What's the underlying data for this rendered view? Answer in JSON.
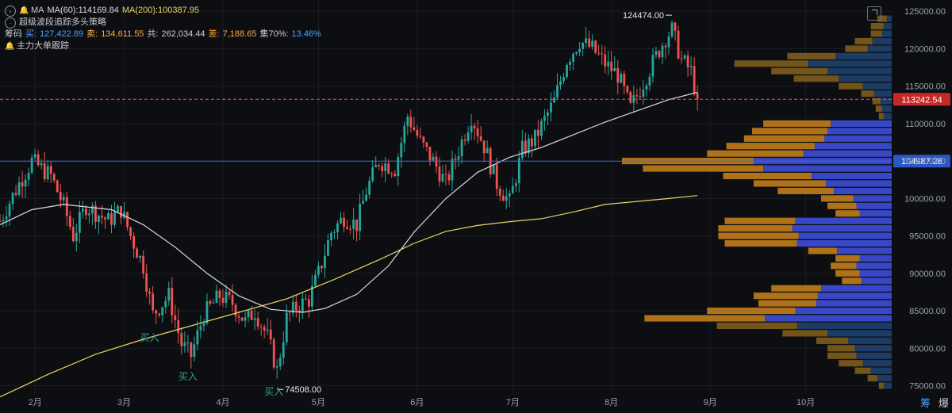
{
  "legend": {
    "indicator_name": "MA",
    "ma60_label": "MA(60):114169.84",
    "ma200_label": "MA(200):100387.95",
    "strategy": "超级波段追踪多头策略",
    "chips_label": "筹码",
    "buy_label": "买:",
    "buy_value": "127,422.89",
    "sell_label": "卖:",
    "sell_value": "134,611.55",
    "total_label": "共:",
    "total_value": "262,034.44",
    "diff_label": "差:",
    "diff_value": "7,188.65",
    "conc_label": "集70%:",
    "conc_value": "13.46%",
    "tracking": "主力大单跟踪"
  },
  "tabs": {
    "chips": "筹",
    "burst": "爆"
  },
  "colors": {
    "background": "#0d0e12",
    "up": "#26a69a",
    "down": "#ef5350",
    "ma60": "#d9dbe0",
    "ma200": "#e8d36a",
    "profile_blue": "#3b4bd1",
    "profile_orange": "#b8781a",
    "profile_navy": "#1f3f6a",
    "profile_brown": "#7a5a1a",
    "price_line": "#ef5350",
    "level_line": "#3a6fd8",
    "buy_signal": "#26a69a"
  },
  "chart_data": {
    "type": "candlestick",
    "y_axis": {
      "ylim": [
        74000,
        126500
      ],
      "ticks": [
        "125000.00",
        "120000.00",
        "115000.00",
        "110000.00",
        "105000.00",
        "100000.00",
        "95000.00",
        "90000.00",
        "85000.00",
        "80000.00",
        "75000.00"
      ]
    },
    "x_axis": {
      "months": [
        "2月",
        "3月",
        "4月",
        "5月",
        "6月",
        "7月",
        "8月",
        "9月",
        "10月"
      ],
      "month_day_index": [
        11,
        39,
        70,
        100,
        131,
        161,
        192,
        223,
        253
      ],
      "total_days_shown": 280
    },
    "price_tags": [
      {
        "label": "113242.54",
        "value": 113242.54,
        "style": "current"
      },
      {
        "label": "104987.26",
        "value": 104987.26,
        "style": "level"
      }
    ],
    "annotations": [
      {
        "text": "124474.00",
        "day": 211,
        "value": 124474,
        "arrow": "right"
      },
      {
        "text": "74508.00",
        "day": 87,
        "value": 74508,
        "arrow": "left"
      }
    ],
    "buy_signals": [
      {
        "text": "买入",
        "day": 47,
        "value": 81000
      },
      {
        "text": "买入",
        "day": 59,
        "value": 75800
      },
      {
        "text": "买入",
        "day": 86,
        "value": 73800
      }
    ],
    "ohlc_path": [
      [
        0,
        97000
      ],
      [
        6,
        102000
      ],
      [
        10,
        105000
      ],
      [
        16,
        103000
      ],
      [
        20,
        99000
      ],
      [
        23,
        95000
      ],
      [
        27,
        99000
      ],
      [
        34,
        97000
      ],
      [
        38,
        98500
      ],
      [
        41,
        95000
      ],
      [
        45,
        91000
      ],
      [
        48,
        84500
      ],
      [
        53,
        87000
      ],
      [
        57,
        80500
      ],
      [
        60,
        79000
      ],
      [
        64,
        84500
      ],
      [
        69,
        87000
      ],
      [
        73,
        86000
      ],
      [
        77,
        83500
      ],
      [
        80,
        85000
      ],
      [
        84,
        81500
      ],
      [
        87,
        77000
      ],
      [
        90,
        84000
      ],
      [
        93,
        85500
      ],
      [
        97,
        86500
      ],
      [
        100,
        90000
      ],
      [
        104,
        95500
      ],
      [
        108,
        97500
      ],
      [
        112,
        96500
      ],
      [
        115,
        101000
      ],
      [
        119,
        105000
      ],
      [
        124,
        104000
      ],
      [
        128,
        111000
      ],
      [
        132,
        107500
      ],
      [
        136,
        105000
      ],
      [
        140,
        102000
      ],
      [
        144,
        106500
      ],
      [
        148,
        111000
      ],
      [
        152,
        107000
      ],
      [
        156,
        102000
      ],
      [
        160,
        99500
      ],
      [
        164,
        106500
      ],
      [
        168,
        108000
      ],
      [
        171,
        110500
      ],
      [
        174,
        113000
      ],
      [
        178,
        118500
      ],
      [
        182,
        121000
      ],
      [
        186,
        120000
      ],
      [
        190,
        118000
      ],
      [
        194,
        116500
      ],
      [
        198,
        112000
      ],
      [
        202,
        115500
      ],
      [
        206,
        119000
      ],
      [
        209,
        121500
      ],
      [
        211,
        122500
      ],
      [
        214,
        118500
      ],
      [
        217,
        117000
      ],
      [
        219,
        113242.54
      ]
    ],
    "ma60_points": [
      [
        0,
        96500
      ],
      [
        10,
        98500
      ],
      [
        20,
        99200
      ],
      [
        35,
        98500
      ],
      [
        45,
        96500
      ],
      [
        55,
        93500
      ],
      [
        65,
        90000
      ],
      [
        75,
        87000
      ],
      [
        85,
        85200
      ],
      [
        95,
        84800
      ],
      [
        102,
        85300
      ],
      [
        112,
        87200
      ],
      [
        122,
        91000
      ],
      [
        130,
        95500
      ],
      [
        140,
        100000
      ],
      [
        150,
        103500
      ],
      [
        160,
        105500
      ],
      [
        170,
        106800
      ],
      [
        180,
        108500
      ],
      [
        190,
        110200
      ],
      [
        200,
        111700
      ],
      [
        210,
        113200
      ],
      [
        219,
        114169.84
      ]
    ],
    "ma200_points": [
      [
        0,
        73500
      ],
      [
        15,
        76500
      ],
      [
        30,
        79200
      ],
      [
        45,
        81200
      ],
      [
        60,
        83000
      ],
      [
        75,
        84800
      ],
      [
        90,
        86600
      ],
      [
        105,
        89200
      ],
      [
        120,
        92000
      ],
      [
        130,
        94000
      ],
      [
        140,
        95600
      ],
      [
        150,
        96400
      ],
      [
        160,
        96900
      ],
      [
        170,
        97300
      ],
      [
        180,
        98200
      ],
      [
        190,
        99200
      ],
      [
        200,
        99600
      ],
      [
        210,
        100000
      ],
      [
        219,
        100387.95
      ]
    ],
    "volume_profile": [
      {
        "price": 124000,
        "sell": 12,
        "buy": 6
      },
      {
        "price": 123000,
        "sell": 16,
        "buy": 10
      },
      {
        "price": 122000,
        "sell": 14,
        "buy": 12
      },
      {
        "price": 121000,
        "sell": 22,
        "buy": 24
      },
      {
        "price": 120000,
        "sell": 28,
        "buy": 30
      },
      {
        "price": 119000,
        "sell": 60,
        "buy": 70
      },
      {
        "price": 118000,
        "sell": 92,
        "buy": 104
      },
      {
        "price": 117000,
        "sell": 70,
        "buy": 80
      },
      {
        "price": 116000,
        "sell": 56,
        "buy": 66
      },
      {
        "price": 115000,
        "sell": 30,
        "buy": 36
      },
      {
        "price": 114000,
        "sell": 16,
        "buy": 22
      },
      {
        "price": 113000,
        "sell": 10,
        "buy": 14
      },
      {
        "price": 112000,
        "sell": 8,
        "buy": 12
      },
      {
        "price": 111000,
        "sell": 6,
        "buy": 10
      },
      {
        "price": 110000,
        "sell": 84,
        "buy": 76
      },
      {
        "price": 109000,
        "sell": 94,
        "buy": 80
      },
      {
        "price": 108000,
        "sell": 100,
        "buy": 84
      },
      {
        "price": 107000,
        "sell": 110,
        "buy": 96
      },
      {
        "price": 106000,
        "sell": 120,
        "buy": 110
      },
      {
        "price": 105000,
        "sell": 164,
        "buy": 172
      },
      {
        "price": 104000,
        "sell": 150,
        "buy": 160
      },
      {
        "price": 103000,
        "sell": 110,
        "buy": 100
      },
      {
        "price": 102000,
        "sell": 90,
        "buy": 82
      },
      {
        "price": 101000,
        "sell": 70,
        "buy": 72
      },
      {
        "price": 100000,
        "sell": 40,
        "buy": 48
      },
      {
        "price": 99000,
        "sell": 36,
        "buy": 44
      },
      {
        "price": 98000,
        "sell": 30,
        "buy": 40
      },
      {
        "price": 97000,
        "sell": 88,
        "buy": 120
      },
      {
        "price": 96000,
        "sell": 92,
        "buy": 124
      },
      {
        "price": 95000,
        "sell": 100,
        "buy": 116
      },
      {
        "price": 94000,
        "sell": 90,
        "buy": 118
      },
      {
        "price": 93000,
        "sell": 36,
        "buy": 68
      },
      {
        "price": 92000,
        "sell": 30,
        "buy": 40
      },
      {
        "price": 91000,
        "sell": 32,
        "buy": 44
      },
      {
        "price": 90000,
        "sell": 30,
        "buy": 40
      },
      {
        "price": 89000,
        "sell": 24,
        "buy": 38
      },
      {
        "price": 88000,
        "sell": 62,
        "buy": 88
      },
      {
        "price": 87000,
        "sell": 80,
        "buy": 92
      },
      {
        "price": 86000,
        "sell": 72,
        "buy": 94
      },
      {
        "price": 85000,
        "sell": 110,
        "buy": 120
      },
      {
        "price": 84000,
        "sell": 150,
        "buy": 158
      },
      {
        "price": 83000,
        "sell": 100,
        "buy": 118
      },
      {
        "price": 82000,
        "sell": 56,
        "buy": 80
      },
      {
        "price": 81000,
        "sell": 40,
        "buy": 54
      },
      {
        "price": 80000,
        "sell": 34,
        "buy": 46
      },
      {
        "price": 79000,
        "sell": 36,
        "buy": 44
      },
      {
        "price": 78000,
        "sell": 30,
        "buy": 36
      },
      {
        "price": 77000,
        "sell": 20,
        "buy": 26
      },
      {
        "price": 76000,
        "sell": 12,
        "buy": 18
      },
      {
        "price": 75000,
        "sell": 6,
        "buy": 10
      }
    ]
  }
}
